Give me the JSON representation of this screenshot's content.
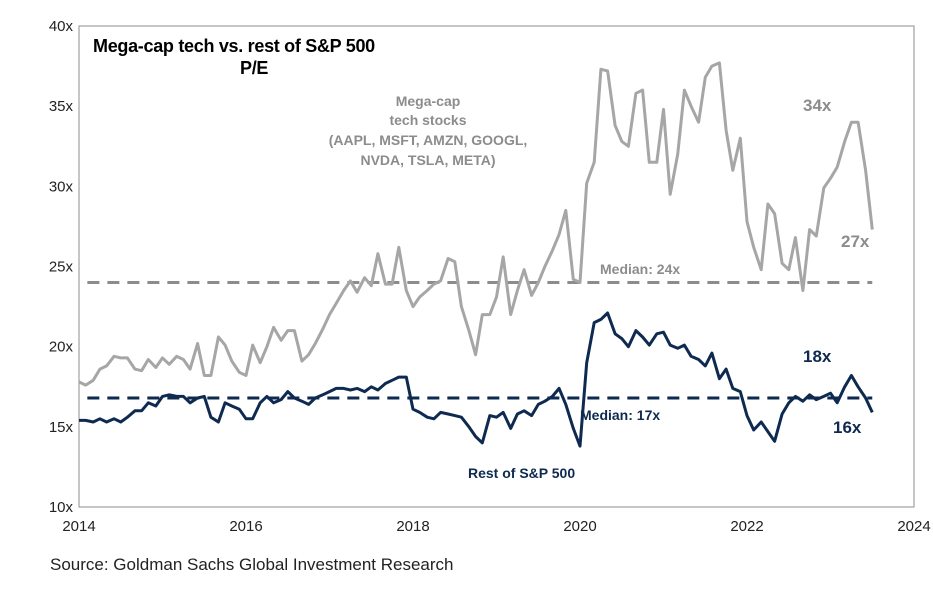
{
  "chart_data": {
    "type": "line",
    "title": "Mega-cap tech vs. rest of S&P 500",
    "subtitle": "P/E",
    "xlim": [
      2014,
      2024
    ],
    "ylim": [
      10,
      40
    ],
    "x_ticks": [
      "2014",
      "2016",
      "2018",
      "2020",
      "2022",
      "2024"
    ],
    "x_tick_values": [
      2014,
      2016,
      2018,
      2020,
      2022,
      2024
    ],
    "y_ticks": [
      "10x",
      "15x",
      "20x",
      "25x",
      "30x",
      "35x",
      "40x"
    ],
    "y_tick_values": [
      10,
      15,
      20,
      25,
      30,
      35,
      40
    ],
    "colors": {
      "mega": "#a6a6a6",
      "rest": "#0e2a50",
      "frame": "#a0a0a0"
    },
    "series": [
      {
        "name": "Mega-cap tech stocks",
        "label_lines": [
          "Mega-cap",
          "tech stocks",
          "(AAPL, MSFT, AMZN, GOOGL,",
          "NVDA, TSLA, META)"
        ],
        "median": 24,
        "median_label": "Median: 24x",
        "peak_label": "34x",
        "end_label": "27x",
        "x": [
          2014.0,
          2014.08,
          2014.17,
          2014.25,
          2014.33,
          2014.42,
          2014.5,
          2014.58,
          2014.67,
          2014.75,
          2014.83,
          2014.92,
          2015.0,
          2015.08,
          2015.17,
          2015.25,
          2015.33,
          2015.42,
          2015.5,
          2015.58,
          2015.67,
          2015.75,
          2015.83,
          2015.92,
          2016.0,
          2016.08,
          2016.17,
          2016.25,
          2016.33,
          2016.42,
          2016.5,
          2016.58,
          2016.67,
          2016.75,
          2016.83,
          2016.92,
          2017.0,
          2017.08,
          2017.17,
          2017.25,
          2017.33,
          2017.42,
          2017.5,
          2017.58,
          2017.67,
          2017.75,
          2017.83,
          2017.92,
          2018.0,
          2018.08,
          2018.17,
          2018.25,
          2018.33,
          2018.42,
          2018.5,
          2018.58,
          2018.67,
          2018.75,
          2018.83,
          2018.92,
          2019.0,
          2019.08,
          2019.17,
          2019.25,
          2019.33,
          2019.42,
          2019.5,
          2019.58,
          2019.67,
          2019.75,
          2019.83,
          2019.92,
          2020.0,
          2020.08,
          2020.17,
          2020.25,
          2020.33,
          2020.42,
          2020.5,
          2020.58,
          2020.67,
          2020.75,
          2020.83,
          2020.92,
          2021.0,
          2021.08,
          2021.17,
          2021.25,
          2021.33,
          2021.42,
          2021.5,
          2021.58,
          2021.67,
          2021.75,
          2021.83,
          2021.92,
          2022.0,
          2022.08,
          2022.17,
          2022.25,
          2022.33,
          2022.42,
          2022.5,
          2022.58,
          2022.67,
          2022.75,
          2022.83,
          2022.92,
          2023.0,
          2023.08,
          2023.17,
          2023.25,
          2023.33,
          2023.42,
          2023.5
        ],
        "values": [
          17.8,
          17.6,
          17.9,
          18.6,
          18.8,
          19.4,
          19.3,
          19.3,
          18.6,
          18.5,
          19.2,
          18.7,
          19.3,
          18.9,
          19.4,
          19.2,
          18.6,
          20.2,
          18.2,
          18.2,
          20.6,
          20.1,
          19.1,
          18.4,
          18.2,
          20.1,
          19.0,
          20.0,
          21.2,
          20.4,
          21.0,
          21.0,
          19.1,
          19.5,
          20.2,
          21.1,
          22.0,
          22.7,
          23.5,
          24.1,
          23.4,
          24.3,
          23.8,
          25.8,
          23.9,
          23.9,
          26.2,
          23.5,
          22.5,
          23.1,
          23.5,
          23.9,
          24.1,
          25.5,
          25.3,
          22.5,
          21.0,
          19.5,
          22.0,
          22.0,
          23.1,
          25.6,
          22.0,
          23.5,
          24.8,
          23.2,
          24.0,
          25.0,
          26.0,
          27.0,
          28.5,
          24.2,
          24.0,
          30.2,
          31.5,
          37.3,
          37.2,
          33.8,
          32.8,
          32.5,
          35.8,
          36.0,
          31.5,
          31.5,
          34.8,
          29.5,
          32.0,
          36.0,
          35.0,
          34.0,
          36.8,
          37.5,
          37.7,
          33.5,
          31.0,
          33.0,
          27.8,
          26.2,
          24.8,
          28.9,
          28.3,
          25.2,
          24.8,
          26.8,
          23.5,
          27.3,
          26.9,
          29.9,
          30.5,
          31.2,
          32.8,
          34.0,
          34.0,
          31.0,
          27.3
        ]
      },
      {
        "name": "Rest of S&P 500",
        "label_lines": [
          "Rest of S&P 500"
        ],
        "median": 16.8,
        "median_label": "Median: 17x",
        "peak_label": "18x",
        "end_label": "16x",
        "x": [
          2014.0,
          2014.08,
          2014.17,
          2014.25,
          2014.33,
          2014.42,
          2014.5,
          2014.58,
          2014.67,
          2014.75,
          2014.83,
          2014.92,
          2015.0,
          2015.08,
          2015.17,
          2015.25,
          2015.33,
          2015.42,
          2015.5,
          2015.58,
          2015.67,
          2015.75,
          2015.83,
          2015.92,
          2016.0,
          2016.08,
          2016.17,
          2016.25,
          2016.33,
          2016.42,
          2016.5,
          2016.58,
          2016.67,
          2016.75,
          2016.83,
          2016.92,
          2017.0,
          2017.08,
          2017.17,
          2017.25,
          2017.33,
          2017.42,
          2017.5,
          2017.58,
          2017.67,
          2017.75,
          2017.83,
          2017.92,
          2018.0,
          2018.08,
          2018.17,
          2018.25,
          2018.33,
          2018.42,
          2018.5,
          2018.58,
          2018.67,
          2018.75,
          2018.83,
          2018.92,
          2019.0,
          2019.08,
          2019.17,
          2019.25,
          2019.33,
          2019.42,
          2019.5,
          2019.58,
          2019.67,
          2019.75,
          2019.83,
          2019.92,
          2020.0,
          2020.08,
          2020.17,
          2020.25,
          2020.33,
          2020.42,
          2020.5,
          2020.58,
          2020.67,
          2020.75,
          2020.83,
          2020.92,
          2021.0,
          2021.08,
          2021.17,
          2021.25,
          2021.33,
          2021.42,
          2021.5,
          2021.58,
          2021.67,
          2021.75,
          2021.83,
          2021.92,
          2022.0,
          2022.08,
          2022.17,
          2022.25,
          2022.33,
          2022.42,
          2022.5,
          2022.58,
          2022.67,
          2022.75,
          2022.83,
          2022.92,
          2023.0,
          2023.08,
          2023.17,
          2023.25,
          2023.33,
          2023.42,
          2023.5
        ],
        "values": [
          15.4,
          15.4,
          15.3,
          15.5,
          15.3,
          15.5,
          15.3,
          15.6,
          16.0,
          16.0,
          16.5,
          16.3,
          16.9,
          17.0,
          16.9,
          16.9,
          16.5,
          16.8,
          16.9,
          15.6,
          15.3,
          16.5,
          16.3,
          16.1,
          15.5,
          15.5,
          16.5,
          16.9,
          16.5,
          16.7,
          17.2,
          16.8,
          16.6,
          16.4,
          16.8,
          17.0,
          17.2,
          17.4,
          17.4,
          17.3,
          17.4,
          17.2,
          17.5,
          17.3,
          17.7,
          17.9,
          18.1,
          18.1,
          16.1,
          15.9,
          15.6,
          15.5,
          15.9,
          15.8,
          15.7,
          15.6,
          15.0,
          14.4,
          14.0,
          15.7,
          15.6,
          15.9,
          14.9,
          15.8,
          16.0,
          15.7,
          16.4,
          16.6,
          16.9,
          17.4,
          16.4,
          14.9,
          13.8,
          19.0,
          21.5,
          21.7,
          22.1,
          20.8,
          20.5,
          20.0,
          21.0,
          20.6,
          20.1,
          20.8,
          20.9,
          20.1,
          19.9,
          20.1,
          19.4,
          19.2,
          18.8,
          19.6,
          18.0,
          18.6,
          17.4,
          17.2,
          15.7,
          14.8,
          15.3,
          14.7,
          14.1,
          15.8,
          16.5,
          16.9,
          16.6,
          17.0,
          16.7,
          16.9,
          17.1,
          16.5,
          17.5,
          18.2,
          17.5,
          16.8,
          15.9
        ]
      }
    ],
    "annotations": {
      "rest_label": "Rest of S&P 500"
    }
  },
  "source": "Source: Goldman Sachs Global Investment Research"
}
